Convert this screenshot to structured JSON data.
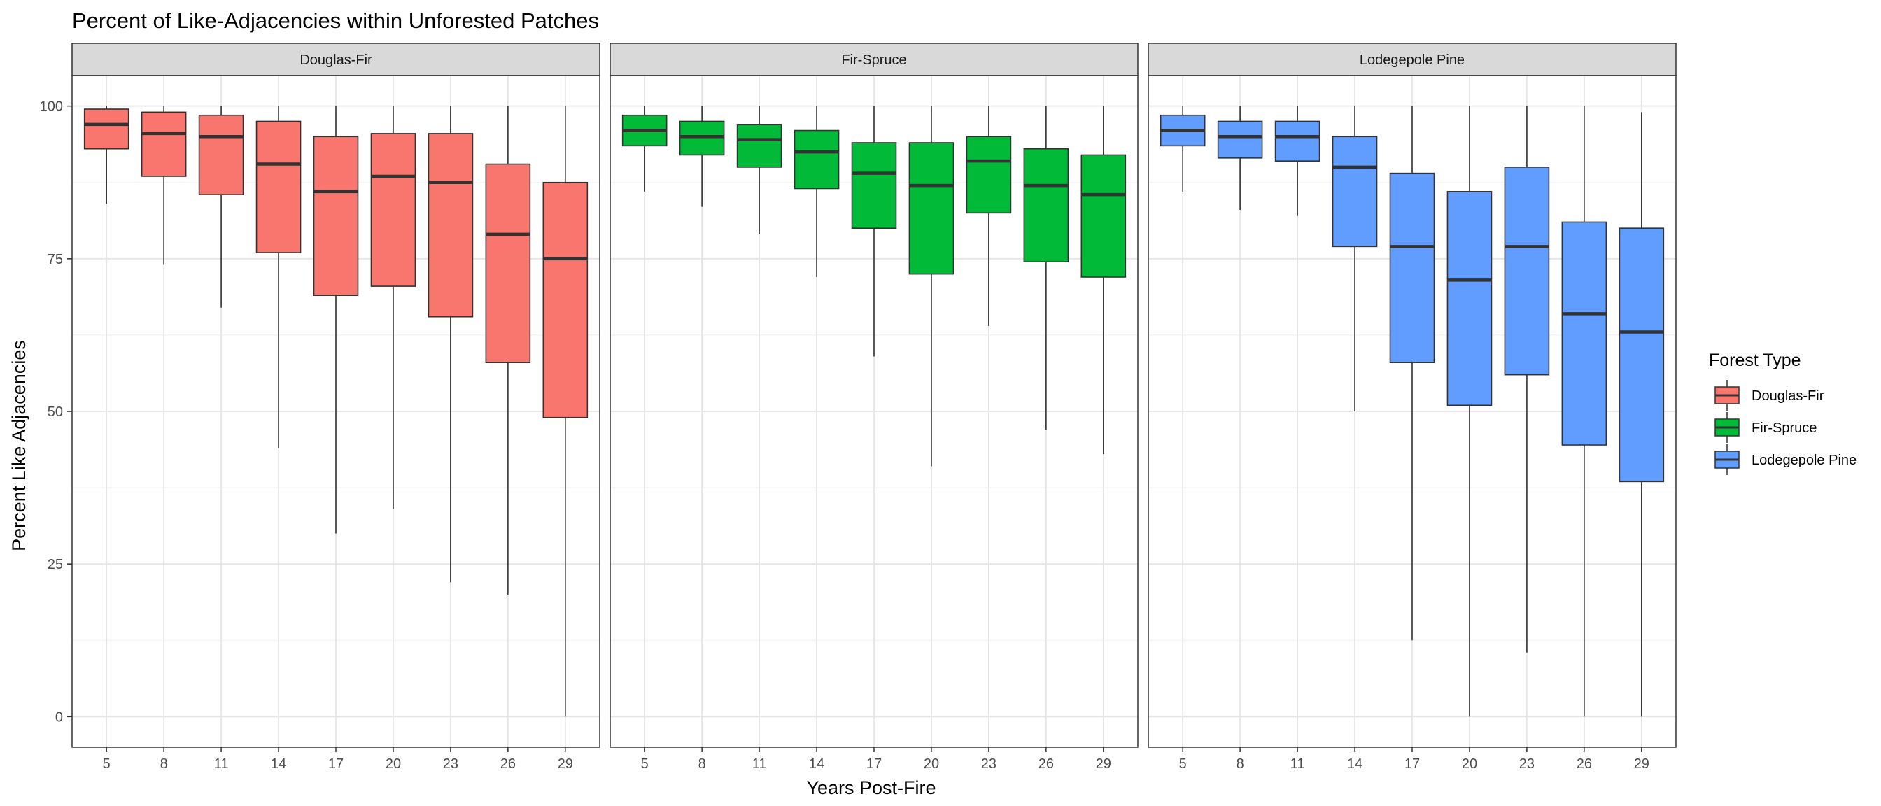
{
  "chart_data": {
    "type": "box",
    "title": "Percent of Like-Adjacencies within Unforested Patches",
    "xlabel": "Years Post-Fire",
    "ylabel": "Percent Like Adjacencies",
    "ylim": [
      -5,
      105
    ],
    "y_ticks": [
      0,
      25,
      50,
      75,
      100
    ],
    "categories": [
      "5",
      "8",
      "11",
      "14",
      "17",
      "20",
      "23",
      "26",
      "29"
    ],
    "grid": true,
    "legend": {
      "title": "Forest Type",
      "placement": "right",
      "items": [
        {
          "label": "Douglas-Fir",
          "color": "#F8766D"
        },
        {
          "label": "Fir-Spruce",
          "color": "#00BA38"
        },
        {
          "label": "Lodegepole Pine",
          "color": "#619CFF"
        }
      ]
    },
    "panels": [
      {
        "name": "Douglas-Fir",
        "color": "#F8766D",
        "boxes": [
          {
            "x": "5",
            "min": 84,
            "q1": 93,
            "median": 97,
            "q3": 99.5,
            "max": 100
          },
          {
            "x": "8",
            "min": 74,
            "q1": 88.5,
            "median": 95.5,
            "q3": 99,
            "max": 100
          },
          {
            "x": "11",
            "min": 67,
            "q1": 85.5,
            "median": 95,
            "q3": 98.5,
            "max": 100
          },
          {
            "x": "14",
            "min": 44,
            "q1": 76,
            "median": 90.5,
            "q3": 97.5,
            "max": 100
          },
          {
            "x": "17",
            "min": 30,
            "q1": 69,
            "median": 86,
            "q3": 95,
            "max": 100
          },
          {
            "x": "20",
            "min": 34,
            "q1": 70.5,
            "median": 88.5,
            "q3": 95.5,
            "max": 100
          },
          {
            "x": "23",
            "min": 22,
            "q1": 65.5,
            "median": 87.5,
            "q3": 95.5,
            "max": 100
          },
          {
            "x": "26",
            "min": 20,
            "q1": 58,
            "median": 79,
            "q3": 90.5,
            "max": 100
          },
          {
            "x": "29",
            "min": 0,
            "q1": 49,
            "median": 75,
            "q3": 87.5,
            "max": 100
          }
        ]
      },
      {
        "name": "Fir-Spruce",
        "color": "#00BA38",
        "boxes": [
          {
            "x": "5",
            "min": 86,
            "q1": 93.5,
            "median": 96,
            "q3": 98.5,
            "max": 100
          },
          {
            "x": "8",
            "min": 83.5,
            "q1": 92,
            "median": 95,
            "q3": 97.5,
            "max": 100
          },
          {
            "x": "11",
            "min": 79,
            "q1": 90,
            "median": 94.5,
            "q3": 97,
            "max": 100
          },
          {
            "x": "14",
            "min": 72,
            "q1": 86.5,
            "median": 92.5,
            "q3": 96,
            "max": 100
          },
          {
            "x": "17",
            "min": 59,
            "q1": 80,
            "median": 89,
            "q3": 94,
            "max": 100
          },
          {
            "x": "20",
            "min": 41,
            "q1": 72.5,
            "median": 87,
            "q3": 94,
            "max": 100
          },
          {
            "x": "23",
            "min": 64,
            "q1": 82.5,
            "median": 91,
            "q3": 95,
            "max": 100
          },
          {
            "x": "26",
            "min": 47,
            "q1": 74.5,
            "median": 87,
            "q3": 93,
            "max": 100
          },
          {
            "x": "29",
            "min": 43,
            "q1": 72,
            "median": 85.5,
            "q3": 92,
            "max": 100
          }
        ]
      },
      {
        "name": "Lodegepole Pine",
        "color": "#619CFF",
        "boxes": [
          {
            "x": "5",
            "min": 86,
            "q1": 93.5,
            "median": 96,
            "q3": 98.5,
            "max": 100
          },
          {
            "x": "8",
            "min": 83,
            "q1": 91.5,
            "median": 95,
            "q3": 97.5,
            "max": 100
          },
          {
            "x": "11",
            "min": 82,
            "q1": 91,
            "median": 95,
            "q3": 97.5,
            "max": 100
          },
          {
            "x": "14",
            "min": 50,
            "q1": 77,
            "median": 90,
            "q3": 95,
            "max": 100
          },
          {
            "x": "17",
            "min": 12.5,
            "q1": 58,
            "median": 77,
            "q3": 89,
            "max": 100
          },
          {
            "x": "20",
            "min": 0,
            "q1": 51,
            "median": 71.5,
            "q3": 86,
            "max": 100
          },
          {
            "x": "23",
            "min": 10.5,
            "q1": 56,
            "median": 77,
            "q3": 90,
            "max": 100
          },
          {
            "x": "26",
            "min": 0,
            "q1": 44.5,
            "median": 66,
            "q3": 81,
            "max": 100
          },
          {
            "x": "29",
            "min": 0,
            "q1": 38.5,
            "median": 63,
            "q3": 80,
            "max": 99
          }
        ]
      }
    ]
  }
}
